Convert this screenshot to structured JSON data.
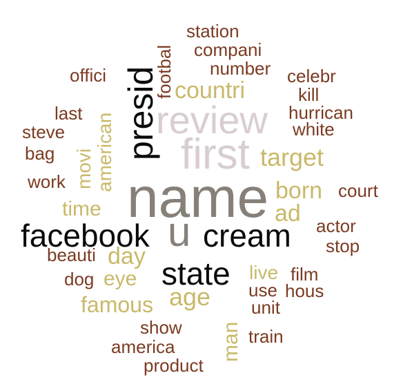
{
  "colors": {
    "brown": "#7a3b22",
    "tan": "#c9b96a",
    "black": "#0a0a0a",
    "gray": "#878079",
    "pink": "#d8cdd2"
  },
  "words": [
    {
      "text": "name",
      "color": "gray"
    },
    {
      "text": "first",
      "color": "pink"
    },
    {
      "text": "review",
      "color": "pink"
    },
    {
      "text": "presid",
      "color": "black"
    },
    {
      "text": "facebook",
      "color": "black"
    },
    {
      "text": "cream",
      "color": "black"
    },
    {
      "text": "state",
      "color": "black"
    },
    {
      "text": "u",
      "color": "gray"
    },
    {
      "text": "countri",
      "color": "tan"
    },
    {
      "text": "target",
      "color": "tan"
    },
    {
      "text": "born",
      "color": "tan"
    },
    {
      "text": "ad",
      "color": "tan"
    },
    {
      "text": "time",
      "color": "tan"
    },
    {
      "text": "day",
      "color": "tan"
    },
    {
      "text": "eye",
      "color": "tan"
    },
    {
      "text": "age",
      "color": "tan"
    },
    {
      "text": "famous",
      "color": "tan"
    },
    {
      "text": "live",
      "color": "tan"
    },
    {
      "text": "man",
      "color": "tan"
    },
    {
      "text": "movi",
      "color": "tan"
    },
    {
      "text": "american",
      "color": "tan"
    },
    {
      "text": "station",
      "color": "brown"
    },
    {
      "text": "compani",
      "color": "brown"
    },
    {
      "text": "number",
      "color": "brown"
    },
    {
      "text": "footbal",
      "color": "brown"
    },
    {
      "text": "offici",
      "color": "brown"
    },
    {
      "text": "celebr",
      "color": "brown"
    },
    {
      "text": "kill",
      "color": "brown"
    },
    {
      "text": "hurrican",
      "color": "brown"
    },
    {
      "text": "white",
      "color": "brown"
    },
    {
      "text": "last",
      "color": "brown"
    },
    {
      "text": "steve",
      "color": "brown"
    },
    {
      "text": "bag",
      "color": "brown"
    },
    {
      "text": "work",
      "color": "brown"
    },
    {
      "text": "court",
      "color": "brown"
    },
    {
      "text": "actor",
      "color": "brown"
    },
    {
      "text": "stop",
      "color": "brown"
    },
    {
      "text": "beauti",
      "color": "brown"
    },
    {
      "text": "dog",
      "color": "brown"
    },
    {
      "text": "film",
      "color": "brown"
    },
    {
      "text": "use",
      "color": "brown"
    },
    {
      "text": "hous",
      "color": "brown"
    },
    {
      "text": "unit",
      "color": "brown"
    },
    {
      "text": "show",
      "color": "brown"
    },
    {
      "text": "train",
      "color": "brown"
    },
    {
      "text": "america",
      "color": "brown"
    },
    {
      "text": "product",
      "color": "brown"
    }
  ]
}
